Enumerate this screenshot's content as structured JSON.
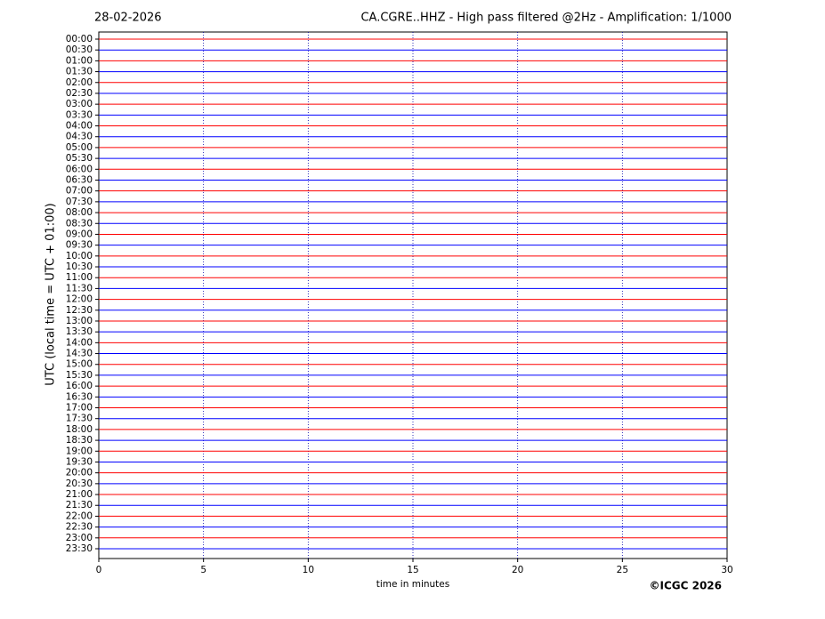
{
  "chart_data": {
    "type": "helicorder",
    "date": "28-02-2026",
    "title": "CA.CGRE..HHZ - High pass filtered @2Hz - Amplification: 1/1000",
    "xlabel": "time in minutes",
    "ylabel": "UTC (local time = UTC + 01:00)",
    "copyright": "©ICGC 2026",
    "categories": [
      "00:00",
      "00:30",
      "01:00",
      "01:30",
      "02:00",
      "02:30",
      "03:00",
      "03:30",
      "04:00",
      "04:30",
      "05:00",
      "05:30",
      "06:00",
      "06:30",
      "07:00",
      "07:30",
      "08:00",
      "08:30",
      "09:00",
      "09:30",
      "10:00",
      "10:30",
      "11:00",
      "11:30",
      "12:00",
      "12:30",
      "13:00",
      "13:30",
      "14:00",
      "14:30",
      "15:00",
      "15:30",
      "16:00",
      "16:30",
      "17:00",
      "17:30",
      "18:00",
      "18:30",
      "19:00",
      "19:30",
      "20:00",
      "20:30",
      "21:00",
      "21:30",
      "22:00",
      "22:30",
      "23:00",
      "23:30"
    ],
    "trace_colors": [
      "#ff0000",
      "#0000ff"
    ],
    "grid_color": "#0000aa",
    "xlim": [
      0,
      30
    ],
    "xticks": [
      0,
      5,
      10,
      15,
      20,
      25,
      30
    ],
    "grid": true
  }
}
